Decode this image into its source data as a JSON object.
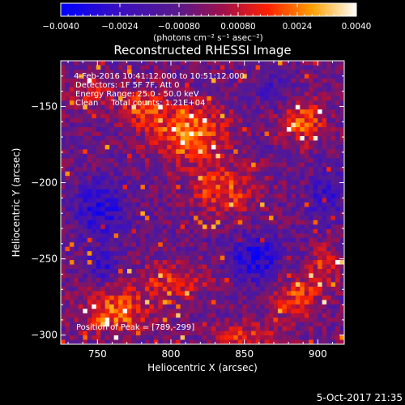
{
  "chart_data": {
    "type": "heatmap",
    "title": "Reconstructed RHESSI Image",
    "xlabel": "Heliocentric X (arcsec)",
    "ylabel": "Heliocentric Y (arcsec)",
    "xlim": [
      725,
      918
    ],
    "ylim": [
      -306,
      -120
    ],
    "x_ticks": [
      750,
      800,
      850,
      900
    ],
    "y_ticks": [
      -150,
      -200,
      -250,
      -300
    ],
    "colorbar": {
      "range": [
        -0.004,
        0.004
      ],
      "tick_values": [
        -0.004,
        -0.0024,
        -0.0008,
        0.0008,
        0.0024,
        0.004
      ],
      "tick_labels": [
        "-0.0040",
        "-0.0024",
        "-0.00080",
        "0.00080",
        "0.0024",
        "0.0040"
      ],
      "unit_label": "(photons cm⁻² s⁻¹ asec⁻²)"
    },
    "annotations": [
      " 4-Feb-2016 10:41:12.000 to 10:51:12.000",
      "Detectors: 1F 5F 7F, Att 0",
      "Energy Range: 25.0 - 50.0 keV",
      "Clean     Total counts: 1.21E+04"
    ],
    "peak_label": "Position of Peak = [789,-299]",
    "peak_position": [
      789,
      -299
    ],
    "grid_size": [
      64,
      64
    ],
    "hot_regions": [
      {
        "x": 812,
        "y": -168,
        "sx": 24,
        "sy": 18,
        "amp": 1.0
      },
      {
        "x": 780,
        "y": -150,
        "sx": 14,
        "sy": 12,
        "amp": 0.75
      },
      {
        "x": 835,
        "y": -205,
        "sx": 22,
        "sy": 16,
        "amp": 0.7
      },
      {
        "x": 762,
        "y": -285,
        "sx": 22,
        "sy": 14,
        "amp": 0.85
      },
      {
        "x": 800,
        "y": -265,
        "sx": 26,
        "sy": 12,
        "amp": 0.55
      },
      {
        "x": 890,
        "y": -160,
        "sx": 14,
        "sy": 14,
        "amp": 0.8
      },
      {
        "x": 885,
        "y": -275,
        "sx": 16,
        "sy": 14,
        "amp": 0.7
      },
      {
        "x": 905,
        "y": -255,
        "sx": 10,
        "sy": 14,
        "amp": 0.6
      },
      {
        "x": 850,
        "y": -300,
        "sx": 22,
        "sy": 8,
        "amp": 0.6
      },
      {
        "x": 745,
        "y": -140,
        "sx": 14,
        "sy": 12,
        "amp": 0.45
      }
    ],
    "cold_regions": [
      {
        "x": 752,
        "y": -218,
        "sx": 18,
        "sy": 18,
        "amp": 0.7
      },
      {
        "x": 858,
        "y": -250,
        "sx": 18,
        "sy": 16,
        "amp": 0.75
      },
      {
        "x": 755,
        "y": -255,
        "sx": 12,
        "sy": 10,
        "amp": 0.5
      },
      {
        "x": 905,
        "y": -210,
        "sx": 12,
        "sy": 20,
        "amp": 0.5
      },
      {
        "x": 870,
        "y": -140,
        "sx": 12,
        "sy": 10,
        "amp": 0.4
      }
    ]
  },
  "footer": {
    "timestamp": "5-Oct-2017 21:35"
  }
}
